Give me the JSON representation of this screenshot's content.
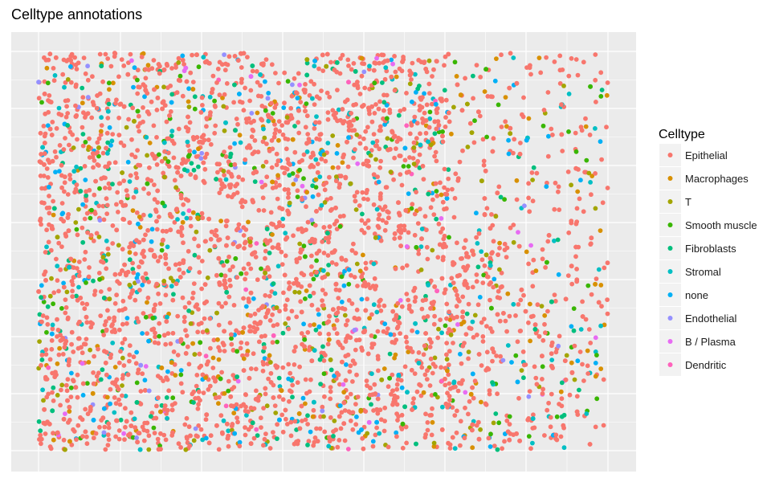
{
  "chart_data": {
    "type": "scatter",
    "title": "Celltype annotations",
    "xlabel": "",
    "ylabel": "",
    "grid": true,
    "axis_ticks": false,
    "legend_position": "right",
    "legend_title": "Celltype",
    "series": [
      {
        "name": "Epithelial",
        "color": "#F8766D",
        "share": 0.72
      },
      {
        "name": "Macrophages",
        "color": "#D89000",
        "share": 0.05
      },
      {
        "name": "T",
        "color": "#A3A500",
        "share": 0.04
      },
      {
        "name": "Smooth muscle",
        "color": "#39B600",
        "share": 0.035
      },
      {
        "name": "Fibroblasts",
        "color": "#00BF7D",
        "share": 0.045
      },
      {
        "name": "Stromal",
        "color": "#00BFC4",
        "share": 0.045
      },
      {
        "name": "none",
        "color": "#00B0F6",
        "share": 0.04
      },
      {
        "name": "Endothelial",
        "color": "#9590FF",
        "share": 0.01
      },
      {
        "name": "B / Plasma",
        "color": "#E76BF3",
        "share": 0.01
      },
      {
        "name": "Dendritic",
        "color": "#FF62BC",
        "share": 0.005
      }
    ],
    "point_count_approx": 4200
  }
}
